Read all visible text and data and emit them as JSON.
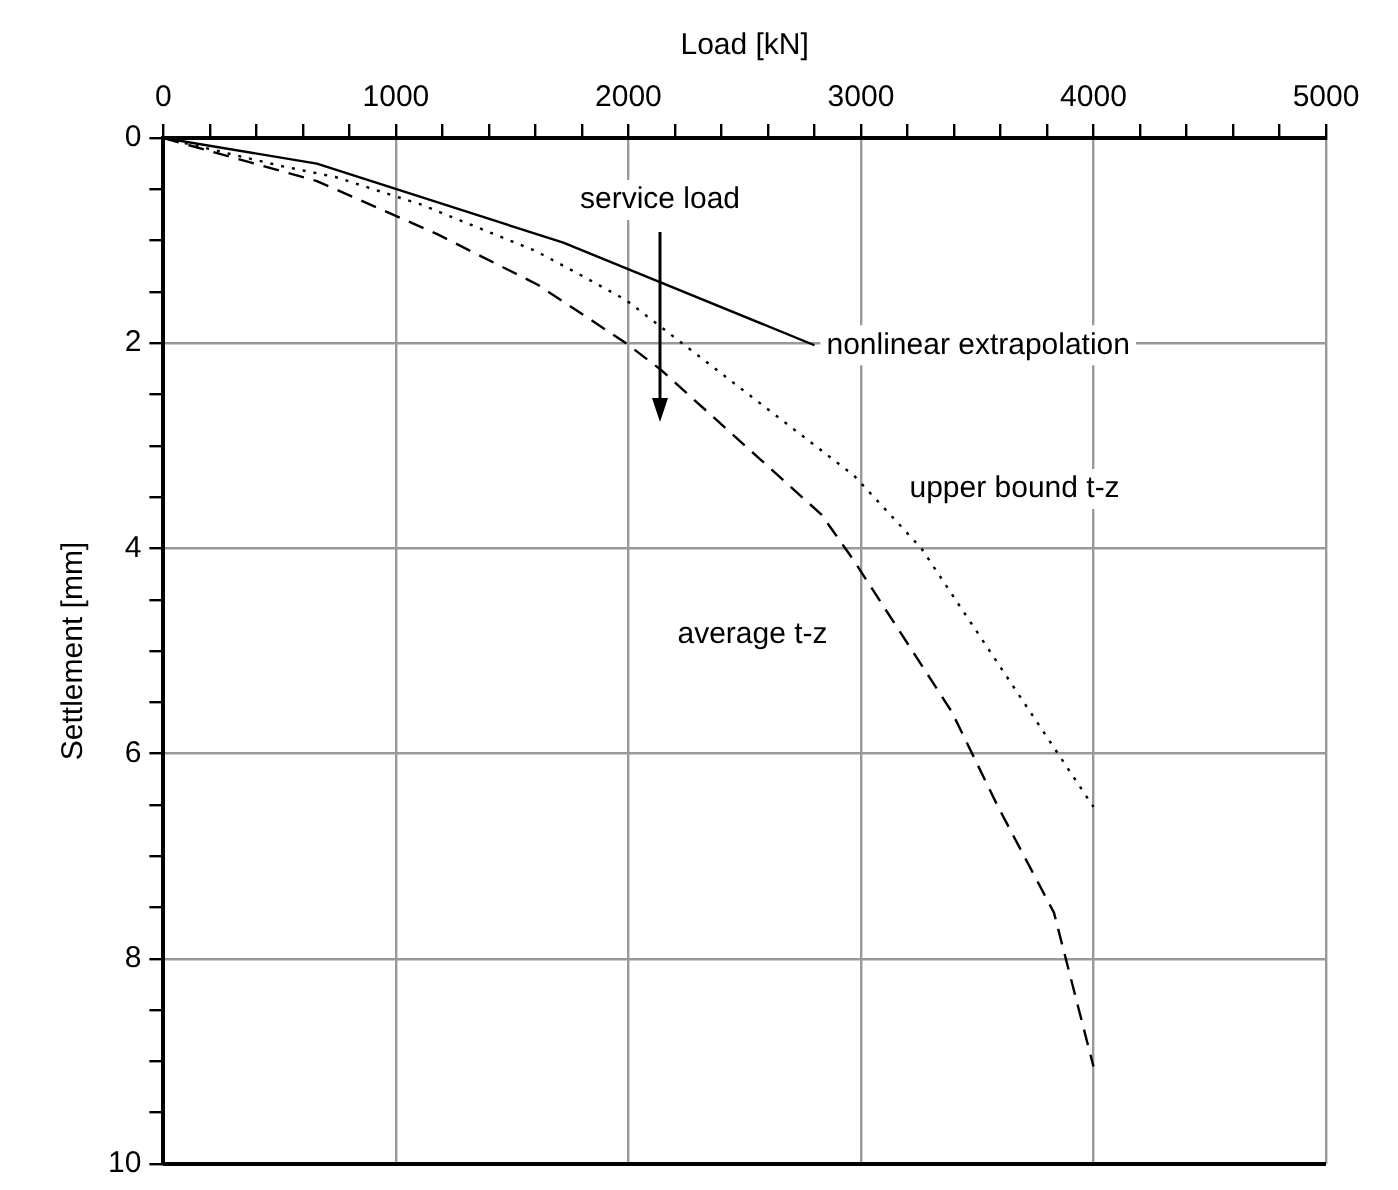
{
  "chart_data": {
    "type": "line",
    "xlabel": "Load [kN]",
    "ylabel": "Settlement [mm]",
    "xlim": [
      0,
      5000
    ],
    "ylim": [
      10,
      0
    ],
    "xticks": [
      0,
      {
        "value": 200,
        "label": null
      },
      {
        "value": 400,
        "label": null
      },
      {
        "value": 600,
        "label": null
      },
      {
        "value": 800,
        "label": null
      },
      1000,
      {
        "value": 1200,
        "label": null
      },
      {
        "value": 1400,
        "label": null
      },
      {
        "value": 1600,
        "label": null
      },
      {
        "value": 1800,
        "label": null
      },
      2000,
      {
        "value": 2200,
        "label": null
      },
      {
        "value": 2400,
        "label": null
      },
      {
        "value": 2600,
        "label": null
      },
      {
        "value": 2800,
        "label": null
      },
      3000,
      {
        "value": 3200,
        "label": null
      },
      {
        "value": 3400,
        "label": null
      },
      {
        "value": 3600,
        "label": null
      },
      {
        "value": 3800,
        "label": null
      },
      4000,
      {
        "value": 4200,
        "label": null
      },
      {
        "value": 4400,
        "label": null
      },
      {
        "value": 4600,
        "label": null
      },
      {
        "value": 4800,
        "label": null
      },
      5000
    ],
    "yticks": [
      0,
      {
        "value": 0.5,
        "label": null
      },
      {
        "value": 1,
        "label": null
      },
      {
        "value": 1.5,
        "label": null
      },
      2,
      {
        "value": 2.5,
        "label": null
      },
      {
        "value": 3,
        "label": null
      },
      {
        "value": 3.5,
        "label": null
      },
      4,
      {
        "value": 4.5,
        "label": null
      },
      {
        "value": 5,
        "label": null
      },
      {
        "value": 5.5,
        "label": null
      },
      6,
      {
        "value": 6.5,
        "label": null
      },
      {
        "value": 7,
        "label": null
      },
      {
        "value": 7.5,
        "label": null
      },
      8,
      {
        "value": 8.5,
        "label": null
      },
      {
        "value": 9,
        "label": null
      },
      {
        "value": 9.5,
        "label": null
      },
      10
    ],
    "grid": true,
    "legend": false,
    "marker": "none",
    "series": [
      {
        "name": "nonlinear extrapolation",
        "color": "#000000",
        "line_style": "solid",
        "x": [
          0,
          660,
          1720,
          2800
        ],
        "values": [
          0,
          0.25,
          1.02,
          2.02
        ]
      },
      {
        "name": "upper bound t-z",
        "color": "#000000",
        "line_style": "dotted",
        "x": [
          0,
          500,
          740,
          1110,
          1600,
          1790,
          1990,
          2970,
          3260,
          4000
        ],
        "values": [
          0,
          0.27,
          0.38,
          0.65,
          1.1,
          1.33,
          1.58,
          3.29,
          4.0,
          6.52
        ]
      },
      {
        "name": "average t-z",
        "color": "#000000",
        "line_style": "dashed",
        "x": [
          0,
          660,
          1180,
          1610,
          1990,
          2140,
          2830,
          2970,
          3390,
          3590,
          3830,
          4000
        ],
        "values": [
          0,
          0.42,
          0.94,
          1.43,
          2.0,
          2.26,
          3.67,
          4.12,
          5.59,
          6.52,
          7.55,
          9.05
        ]
      }
    ],
    "annotations": [
      "service load"
    ]
  }
}
